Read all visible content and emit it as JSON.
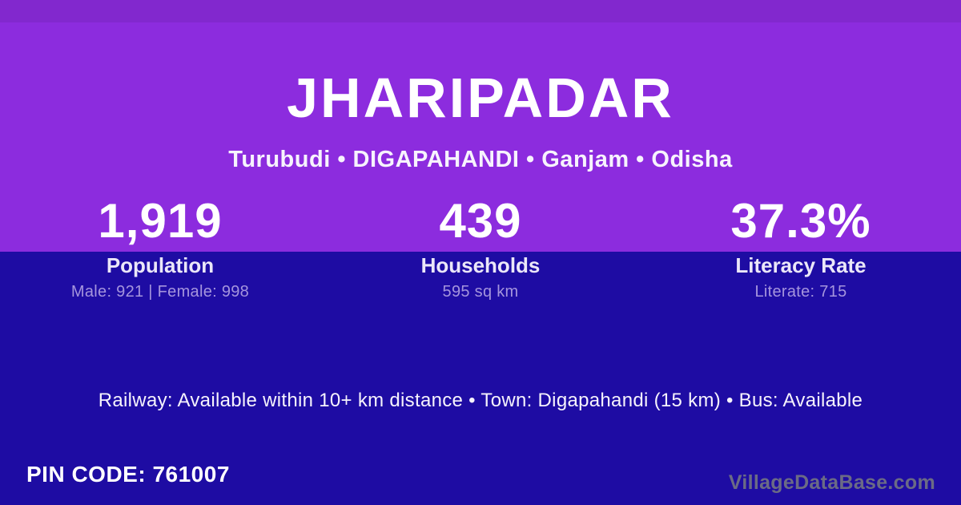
{
  "card": {
    "title": "JHARIPADAR",
    "breadcrumb": "Turubudi • DIGAPAHANDI • Ganjam • Odisha",
    "stats": [
      {
        "value": "1,919",
        "label": "Population",
        "detail": "Male: 921 | Female: 998"
      },
      {
        "value": "439",
        "label": "Households",
        "detail": "595 sq km"
      },
      {
        "value": "37.3%",
        "label": "Literacy Rate",
        "detail": "Literate: 715"
      }
    ],
    "transport_line": "Railway: Available within 10+ km distance  •  Town: Digapahandi (15 km)  •  Bus: Available",
    "pin_code": "PIN CODE: 761007",
    "watermark": "VillageDataBase.com",
    "colors": {
      "top_background": "#8C2CDE",
      "bottom_background": "#1E0CA3",
      "primary_text": "#FFFFFF",
      "muted_text": "#A595DD",
      "watermark_text": "#6B6B85"
    }
  }
}
